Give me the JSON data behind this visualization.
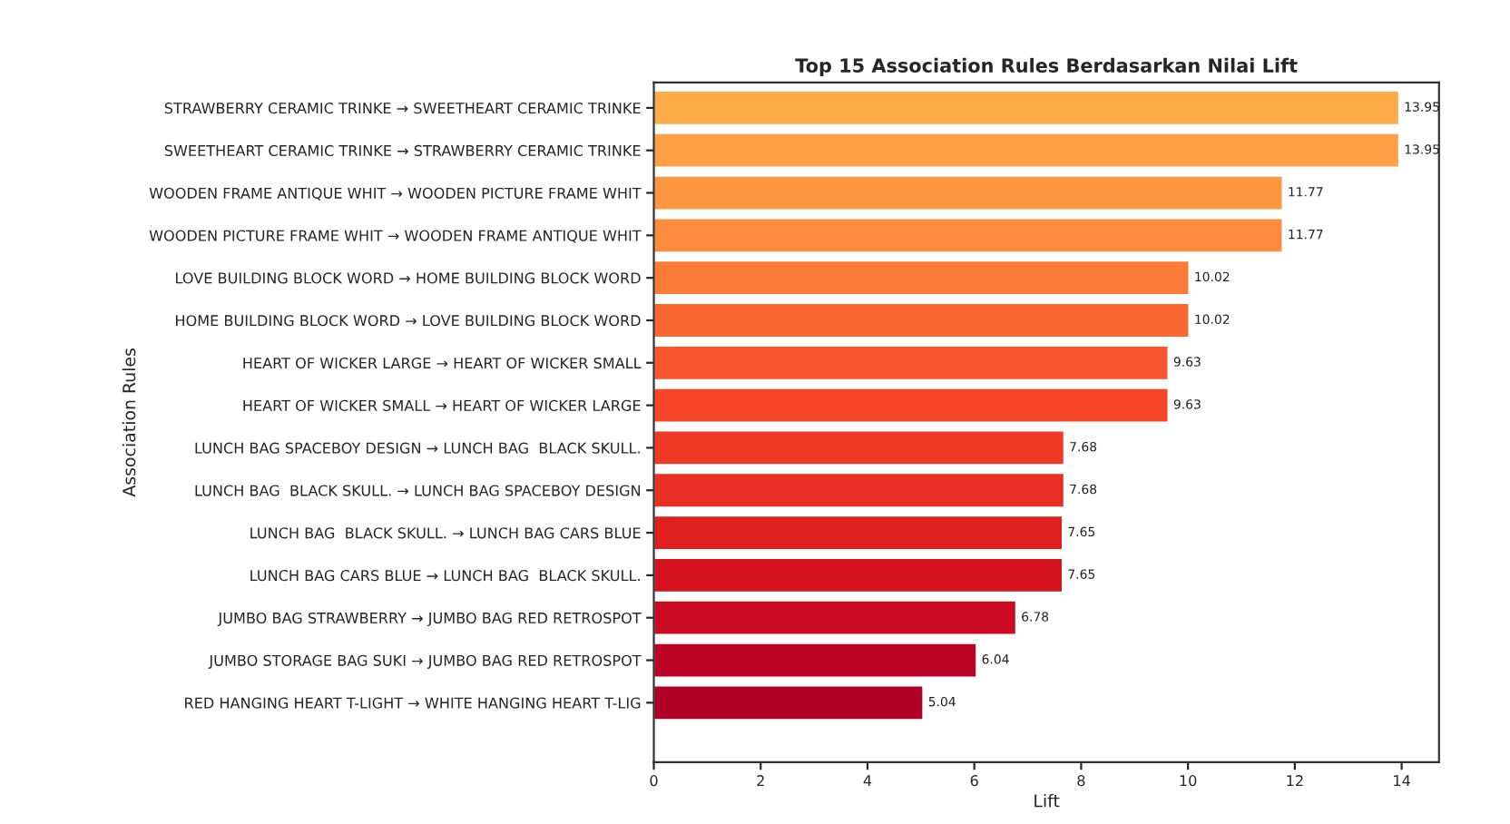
{
  "chart_data": {
    "type": "bar",
    "orientation": "horizontal",
    "title": "Top 15 Association Rules Berdasarkan Nilai Lift",
    "xlabel": "Lift",
    "ylabel": "Association Rules",
    "categories": [
      "STRAWBERRY CERAMIC TRINKE → SWEETHEART CERAMIC TRINKE",
      "SWEETHEART CERAMIC TRINKE → STRAWBERRY CERAMIC TRINKE",
      "WOODEN FRAME ANTIQUE WHIT → WOODEN PICTURE FRAME WHIT",
      "WOODEN PICTURE FRAME WHIT → WOODEN FRAME ANTIQUE WHIT",
      "LOVE BUILDING BLOCK WORD → HOME BUILDING BLOCK WORD",
      "HOME BUILDING BLOCK WORD → LOVE BUILDING BLOCK WORD",
      "HEART OF WICKER LARGE → HEART OF WICKER SMALL",
      "HEART OF WICKER SMALL → HEART OF WICKER LARGE",
      "LUNCH BAG SPACEBOY DESIGN → LUNCH BAG  BLACK SKULL.",
      "LUNCH BAG  BLACK SKULL. → LUNCH BAG SPACEBOY DESIGN",
      "LUNCH BAG  BLACK SKULL. → LUNCH BAG CARS BLUE",
      "LUNCH BAG CARS BLUE → LUNCH BAG  BLACK SKULL.",
      "JUMBO BAG STRAWBERRY → JUMBO BAG RED RETROSPOT",
      "JUMBO STORAGE BAG SUKI → JUMBO BAG RED RETROSPOT",
      "RED HANGING HEART T-LIGHT → WHITE HANGING HEART T-LIG"
    ],
    "values": [
      13.95,
      13.95,
      11.77,
      11.77,
      10.02,
      10.02,
      9.63,
      9.63,
      7.68,
      7.68,
      7.65,
      7.65,
      6.78,
      6.04,
      5.04
    ],
    "colors": [
      "#feab4a",
      "#fd9f44",
      "#fd9640",
      "#fd8c3c",
      "#fc7b37",
      "#fc6832",
      "#fb552e",
      "#f8452a",
      "#f03a26",
      "#e82f23",
      "#e01f1f",
      "#d5141f",
      "#ca0b22",
      "#bd0325",
      "#b10026"
    ],
    "data_labels": true,
    "xlim": [
      0,
      14.7
    ],
    "xticks": [
      0,
      2,
      4,
      6,
      8,
      10,
      12,
      14
    ],
    "grid": false,
    "legend": false
  }
}
